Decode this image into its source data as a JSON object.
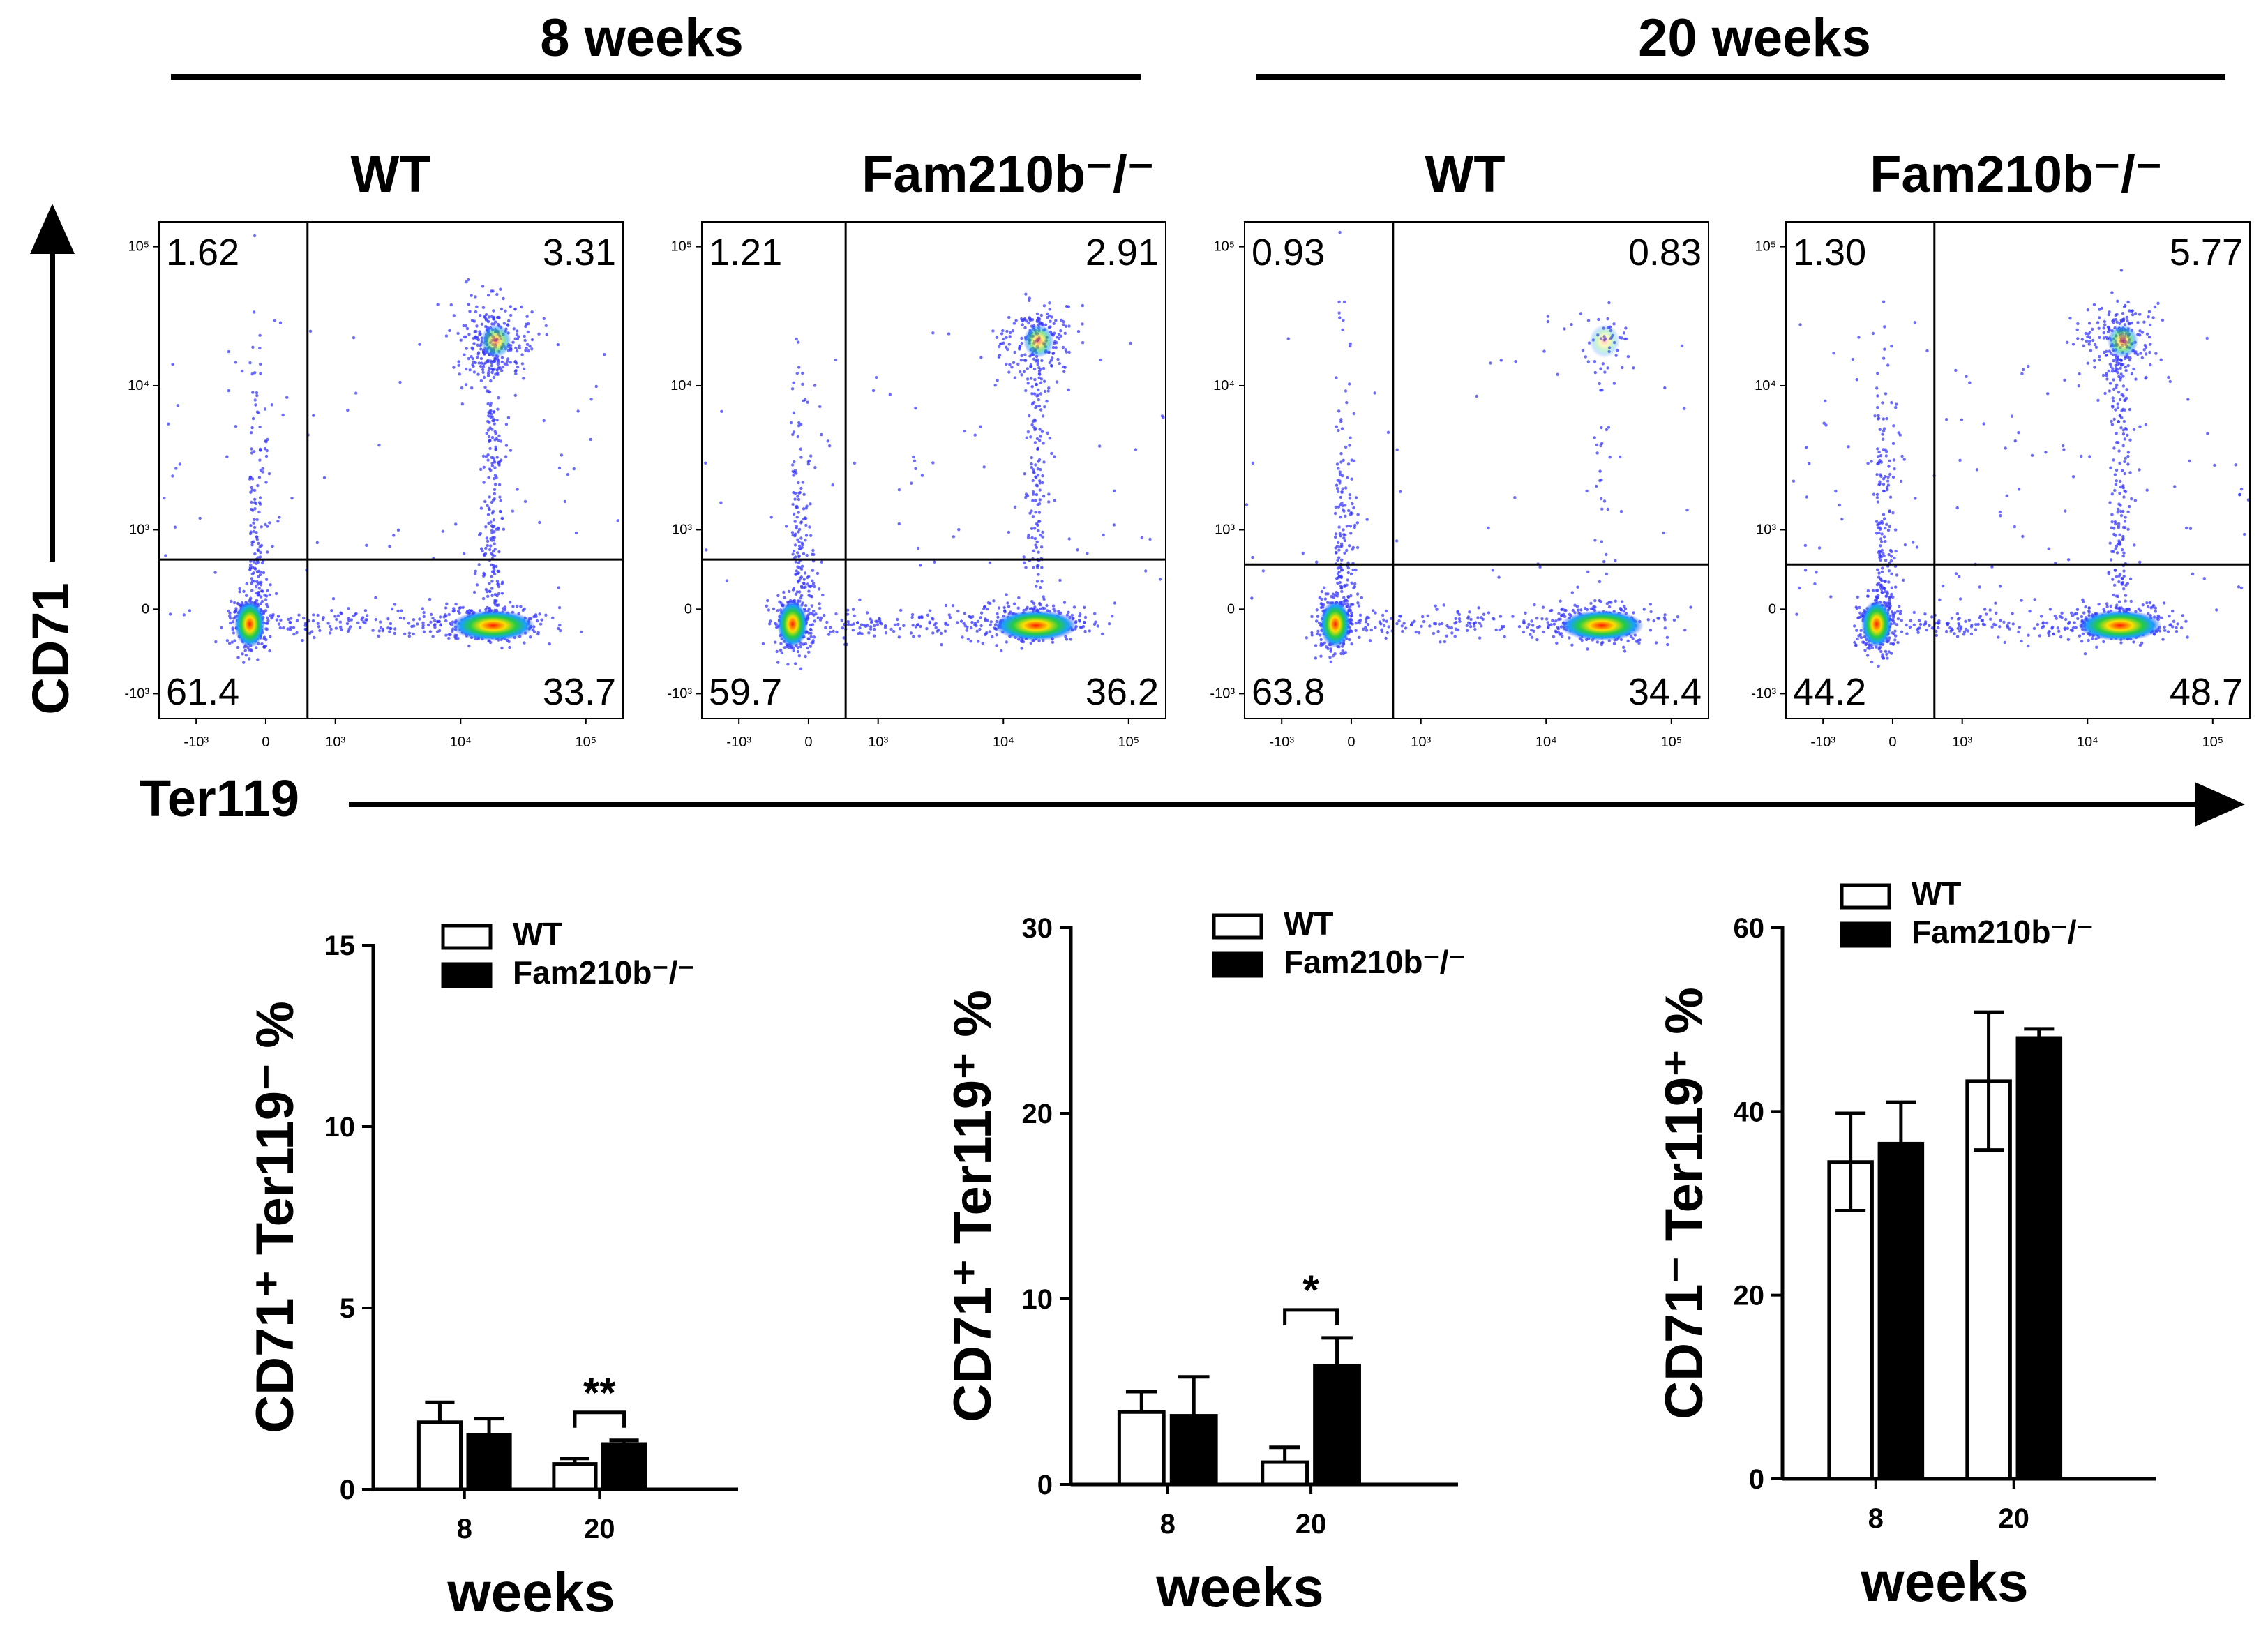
{
  "header": {
    "group_left": "8 weeks",
    "group_right": "20 weeks",
    "y_axis": "CD71",
    "x_axis": "Ter119"
  },
  "flow_panels": [
    {
      "title": "WT",
      "q_ul": "1.62",
      "q_ur": "3.31",
      "q_ll": "61.4",
      "q_lr": "33.7"
    },
    {
      "title": "Fam210b⁻/⁻",
      "q_ul": "1.21",
      "q_ur": "2.91",
      "q_ll": "59.7",
      "q_lr": "36.2"
    },
    {
      "title": "WT",
      "q_ul": "0.93",
      "q_ur": "0.83",
      "q_ll": "63.8",
      "q_lr": "34.4"
    },
    {
      "title": "Fam210b⁻/⁻",
      "q_ul": "1.30",
      "q_ur": "5.77",
      "q_ll": "44.2",
      "q_lr": "48.7"
    }
  ],
  "flow_ticks": {
    "y": [
      "10⁵",
      "10⁴",
      "10³",
      "0",
      "-10³"
    ],
    "x": [
      "-10³",
      "0",
      "10³",
      "10⁴",
      "10⁵"
    ]
  },
  "chart_data": [
    {
      "type": "bar",
      "title": "",
      "xlabel": "weeks",
      "ylabel": "CD71⁺ Ter119⁻ %",
      "categories": [
        "8",
        "20"
      ],
      "ylim": [
        0,
        15
      ],
      "yticks": [
        "0",
        "5",
        "10",
        "15"
      ],
      "series": [
        {
          "name": "WT",
          "values": [
            1.85,
            0.7
          ],
          "errors": [
            0.55,
            0.15
          ]
        },
        {
          "name": "Fam210b⁻/⁻",
          "values": [
            1.5,
            1.25
          ],
          "errors": [
            0.45,
            0.1
          ]
        }
      ],
      "annotation": "**"
    },
    {
      "type": "bar",
      "title": "",
      "xlabel": "weeks",
      "ylabel": "CD71⁺ Ter119⁺ %",
      "categories": [
        "8",
        "20"
      ],
      "ylim": [
        0,
        30
      ],
      "yticks": [
        "0",
        "10",
        "20",
        "30"
      ],
      "series": [
        {
          "name": "WT",
          "values": [
            3.9,
            1.2
          ],
          "errors": [
            1.1,
            0.8
          ]
        },
        {
          "name": "Fam210b⁻/⁻",
          "values": [
            3.7,
            6.4
          ],
          "errors": [
            2.1,
            1.5
          ]
        }
      ],
      "annotation": "*"
    },
    {
      "type": "bar",
      "title": "",
      "xlabel": "weeks",
      "ylabel": "CD71⁻ Ter119⁺ %",
      "categories": [
        "8",
        "20"
      ],
      "ylim": [
        0,
        60
      ],
      "yticks": [
        "0",
        "20",
        "40",
        "60"
      ],
      "series": [
        {
          "name": "WT",
          "values": [
            34.5,
            43.3
          ],
          "errors": [
            5.3,
            7.5
          ]
        },
        {
          "name": "Fam210b⁻/⁻",
          "values": [
            36.5,
            48.0
          ],
          "errors": [
            4.5,
            1.0
          ]
        }
      ],
      "annotation": ""
    }
  ]
}
